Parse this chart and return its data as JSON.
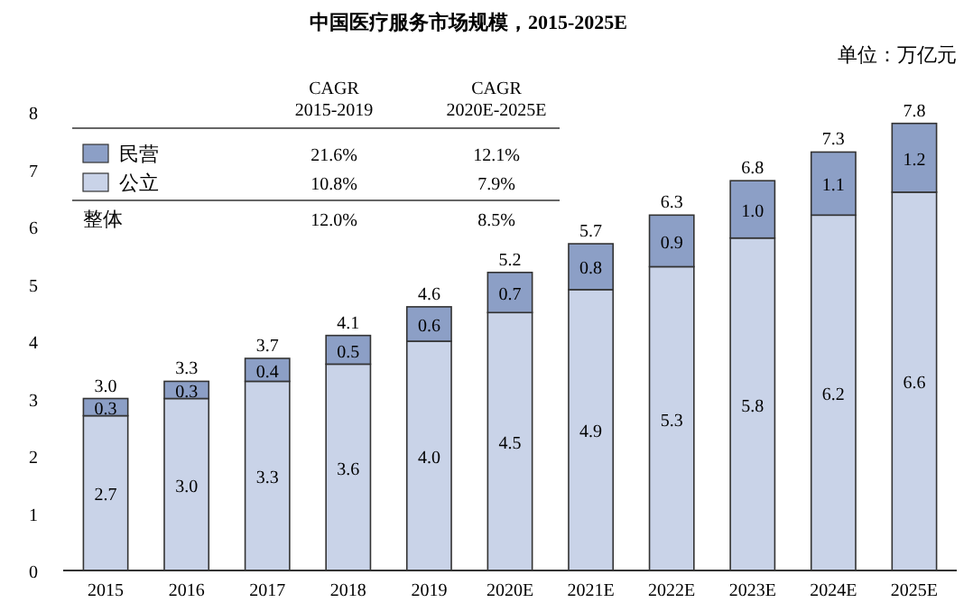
{
  "chart_data": {
    "type": "bar",
    "title": "中国医疗服务市场规模，2015-2025E",
    "categories": [
      "2015",
      "2016",
      "2017",
      "2018",
      "2019",
      "2020E",
      "2021E",
      "2022E",
      "2023E",
      "2024E",
      "2025E"
    ],
    "series": [
      {
        "name": "公立",
        "color": "#c9d3e8",
        "values": [
          2.7,
          3.0,
          3.3,
          3.6,
          4.0,
          4.5,
          4.9,
          5.3,
          5.8,
          6.2,
          6.6
        ],
        "value_labels": [
          "2.7",
          "3.0",
          "3.3",
          "3.6",
          "4.0",
          "4.5",
          "4.9",
          "5.3",
          "5.8",
          "6.2",
          "6.6"
        ]
      },
      {
        "name": "民营",
        "color": "#8c9fc6",
        "values": [
          0.3,
          0.3,
          0.4,
          0.5,
          0.6,
          0.7,
          0.8,
          0.9,
          1.0,
          1.1,
          1.2
        ],
        "value_labels": [
          "0.3",
          "0.3",
          "0.4",
          "0.5",
          "0.6",
          "0.7",
          "0.8",
          "0.9",
          "1.0",
          "1.1",
          "1.2"
        ]
      }
    ],
    "stacked": true,
    "totals": [
      "3.0",
      "3.3",
      "3.7",
      "4.1",
      "4.6",
      "5.2",
      "5.7",
      "6.3",
      "6.8",
      "7.3",
      "7.8"
    ],
    "ylim": [
      0,
      8
    ],
    "yticks": [
      0,
      1,
      2,
      3,
      4,
      5,
      6,
      7,
      8
    ],
    "grid": false,
    "legend": "top left",
    "annotations": [
      "单位：万亿元",
      "CAGR\n2015-2019",
      "CAGR\n2020E-2025E",
      "21.6%",
      "12.1%",
      "10.8%",
      "7.9%",
      "整体",
      "12.0%",
      "8.5%"
    ]
  }
}
